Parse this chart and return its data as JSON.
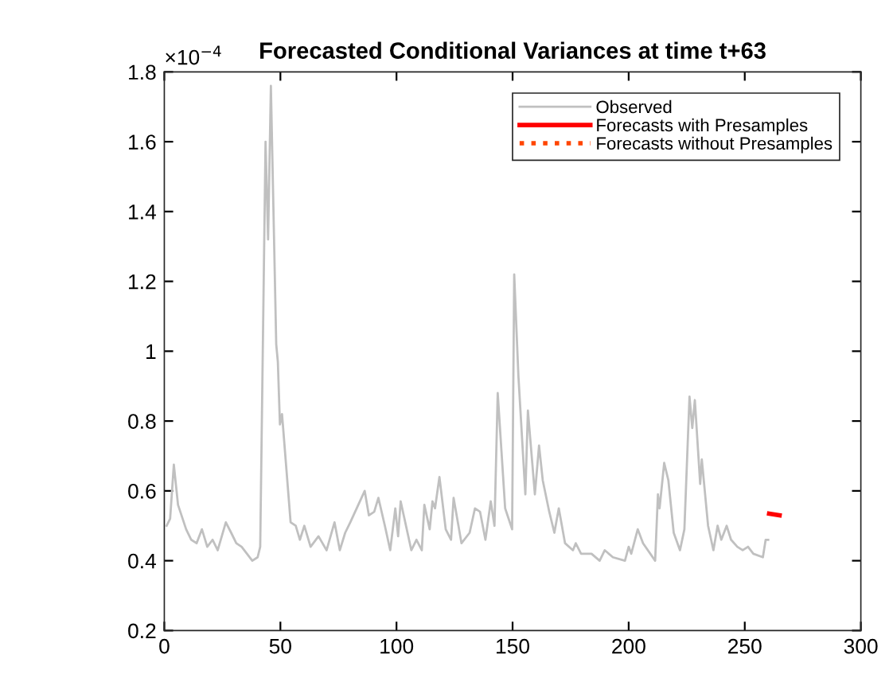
{
  "chart_data": {
    "type": "line",
    "title": "Forecasted Conditional Variances at time t+63",
    "annotations": [
      "×10$^{−4}$"
    ],
    "series": [
      {
        "name": "Observed",
        "color": "#c0c0c0",
        "line_style": "solid",
        "x": [
          1,
          2.5,
          4.1,
          5.9,
          9.4,
          11.6,
          13.9,
          16.2,
          18.5,
          20.8,
          23,
          26.5,
          28.8,
          31,
          33.3,
          35.6,
          37.9,
          40.2,
          41.3,
          43.6,
          44.7,
          45.9,
          48.2,
          48.9,
          49.8,
          50.7,
          54.4,
          56.6,
          58.4,
          60.3,
          63,
          66.4,
          69.9,
          73.3,
          75.6,
          77.9,
          80.1,
          86.3,
          88.1,
          90.4,
          92.2,
          95,
          97.3,
          99.5,
          100.7,
          101.8,
          106.4,
          108.6,
          110.9,
          112,
          114.3,
          115.5,
          116.6,
          118.5,
          121.2,
          123.5,
          124.6,
          128,
          131.5,
          133.8,
          136,
          138.3,
          140.6,
          142.2,
          143.6,
          146.8,
          149.8,
          150.7,
          152.5,
          155.5,
          156.6,
          159.6,
          161.4,
          163,
          165.8,
          168,
          169.9,
          172.6,
          176,
          177.2,
          179.5,
          184,
          187.5,
          189.7,
          193.2,
          198.4,
          200,
          201.1,
          203.9,
          206.2,
          211.4,
          212.6,
          213.3,
          215.3,
          217.1,
          219.4,
          222.1,
          224,
          226.2,
          227.4,
          228.5,
          230.8,
          231.5,
          234.2,
          236.5,
          238.3,
          239.9,
          242.2,
          244.1,
          246.8,
          249.1,
          251.4,
          253.7,
          257.8,
          259,
          260.1
        ],
        "values": [
          0.5,
          0.52,
          0.675,
          0.56,
          0.49,
          0.46,
          0.45,
          0.49,
          0.44,
          0.46,
          0.43,
          0.51,
          0.48,
          0.45,
          0.44,
          0.42,
          0.4,
          0.41,
          0.44,
          1.6,
          1.32,
          1.76,
          1.02,
          0.97,
          0.79,
          0.82,
          0.51,
          0.5,
          0.46,
          0.5,
          0.44,
          0.47,
          0.43,
          0.51,
          0.43,
          0.48,
          0.51,
          0.6,
          0.53,
          0.54,
          0.58,
          0.5,
          0.43,
          0.55,
          0.47,
          0.57,
          0.43,
          0.46,
          0.43,
          0.56,
          0.49,
          0.57,
          0.55,
          0.64,
          0.49,
          0.46,
          0.58,
          0.45,
          0.48,
          0.55,
          0.54,
          0.46,
          0.57,
          0.5,
          0.88,
          0.55,
          0.49,
          1.22,
          0.93,
          0.59,
          0.83,
          0.59,
          0.73,
          0.63,
          0.54,
          0.48,
          0.55,
          0.45,
          0.43,
          0.45,
          0.42,
          0.42,
          0.4,
          0.43,
          0.41,
          0.4,
          0.44,
          0.42,
          0.49,
          0.45,
          0.4,
          0.59,
          0.55,
          0.68,
          0.63,
          0.48,
          0.43,
          0.49,
          0.87,
          0.78,
          0.86,
          0.62,
          0.69,
          0.5,
          0.43,
          0.5,
          0.46,
          0.5,
          0.46,
          0.44,
          0.43,
          0.44,
          0.42,
          0.41,
          0.46,
          0.46
        ]
      },
      {
        "name": "Forecasts with Presamples",
        "color": "#ff0000",
        "line_style": "solid",
        "x": [
          260.5,
          265
        ],
        "values": [
          0.535,
          0.53
        ]
      },
      {
        "name": "Forecasts without Presamples",
        "color": "#ff4500",
        "line_style": "dotted"
      }
    ],
    "xlim": [
      0,
      300
    ],
    "xticks": [
      0,
      50,
      100,
      150,
      200,
      250,
      300
    ],
    "ylim": [
      0.2,
      1.8
    ],
    "yticks": [
      0.2,
      0.4,
      0.6,
      0.8,
      1,
      1.2,
      1.4,
      1.6,
      1.8
    ],
    "grid": false,
    "legend": "top right"
  }
}
